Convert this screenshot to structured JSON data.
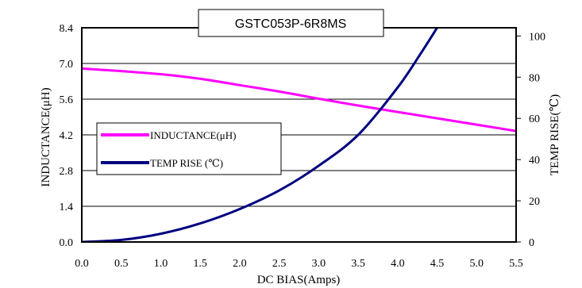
{
  "chart_data": {
    "type": "line",
    "title": "GSTC053P-6R8MS",
    "xlabel": "DC BIAS(Amps)",
    "ylabel_left": "INDUCTANCE(μH)",
    "ylabel_right": "TEMP RISE(℃)",
    "x_ticks": [
      "0.0",
      "0.5",
      "1.0",
      "1.5",
      "2.0",
      "2.5",
      "3.0",
      "3.5",
      "4.0",
      "4.5",
      "5.0",
      "5.5"
    ],
    "y_left_ticks": [
      "0.0",
      "1.4",
      "2.8",
      "4.2",
      "5.6",
      "7.0",
      "8.4"
    ],
    "y_right_ticks": [
      "0",
      "20",
      "40",
      "60",
      "80",
      "100"
    ],
    "xlim": [
      0,
      5.5
    ],
    "ylim_left": [
      0,
      8.4
    ],
    "ylim_right": [
      0,
      104
    ],
    "grid": "horizontal",
    "legend_position": "left",
    "series": [
      {
        "name": "INDUCTANCE(μH)",
        "axis": "left",
        "color": "#ff00ff",
        "x": [
          0,
          0.5,
          1.0,
          1.5,
          2.0,
          2.5,
          3.0,
          3.5,
          4.0,
          4.5,
          5.0,
          5.5
        ],
        "values": [
          6.8,
          6.7,
          6.58,
          6.4,
          6.15,
          5.9,
          5.62,
          5.35,
          5.1,
          4.85,
          4.6,
          4.35
        ]
      },
      {
        "name": "TEMP RISE (℃)",
        "axis": "right",
        "color": "#000080",
        "x": [
          0,
          0.5,
          1.0,
          1.5,
          2.0,
          2.5,
          3.0,
          3.5,
          4.0,
          4.3,
          4.5
        ],
        "values": [
          0,
          1,
          4,
          9,
          16,
          25,
          37,
          52,
          75,
          92,
          104
        ]
      }
    ]
  }
}
